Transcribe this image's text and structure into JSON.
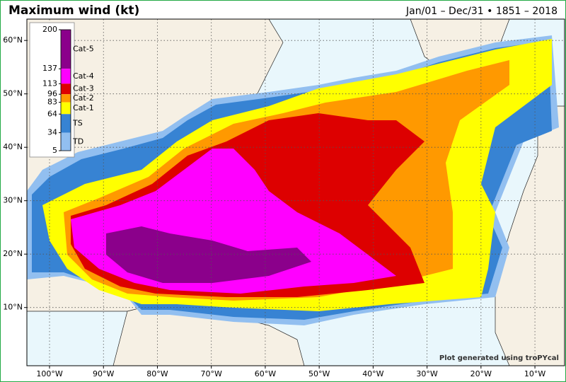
{
  "header": {
    "title": "Maximum wind (kt)",
    "period": "Jan/01 – Dec/31 • 1851 – 2018"
  },
  "colorbar": {
    "lim": [
      5,
      200
    ],
    "ticks": [
      200,
      137,
      113,
      96,
      83,
      64,
      34,
      5
    ],
    "categories": [
      {
        "label": "Cat-5",
        "color": "#8b008b"
      },
      {
        "label": "Cat-4",
        "color": "#ff00ff"
      },
      {
        "label": "Cat-3",
        "color": "#dd0000"
      },
      {
        "label": "Cat-2",
        "color": "#ff9900"
      },
      {
        "label": "Cat-1",
        "color": "#ffff00"
      },
      {
        "label": "TS",
        "color": "#3783d3"
      },
      {
        "label": "TD",
        "color": "#92bff0"
      }
    ]
  },
  "axes": {
    "lonlim": [
      -104.2,
      -4.5
    ],
    "latlim": [
      -0.9,
      64.0
    ],
    "lon": [
      {
        "value": -100,
        "label": "100°W"
      },
      {
        "value": -90,
        "label": "90°W"
      },
      {
        "value": -80,
        "label": "80°W"
      },
      {
        "value": -70,
        "label": "70°W"
      },
      {
        "value": -60,
        "label": "60°W"
      },
      {
        "value": -50,
        "label": "50°W"
      },
      {
        "value": -40,
        "label": "40°W"
      },
      {
        "value": -30,
        "label": "30°W"
      },
      {
        "value": -20,
        "label": "20°W"
      },
      {
        "value": -10,
        "label": "10°W"
      }
    ],
    "lat": [
      {
        "value": 60,
        "label": "60°N"
      },
      {
        "value": 50,
        "label": "50°N"
      },
      {
        "value": 40,
        "label": "40°N"
      },
      {
        "value": 30,
        "label": "30°N"
      },
      {
        "value": 20,
        "label": "20°N"
      },
      {
        "value": 10,
        "label": "10°N"
      }
    ]
  },
  "credit": "Plot generated using troPYcal"
}
